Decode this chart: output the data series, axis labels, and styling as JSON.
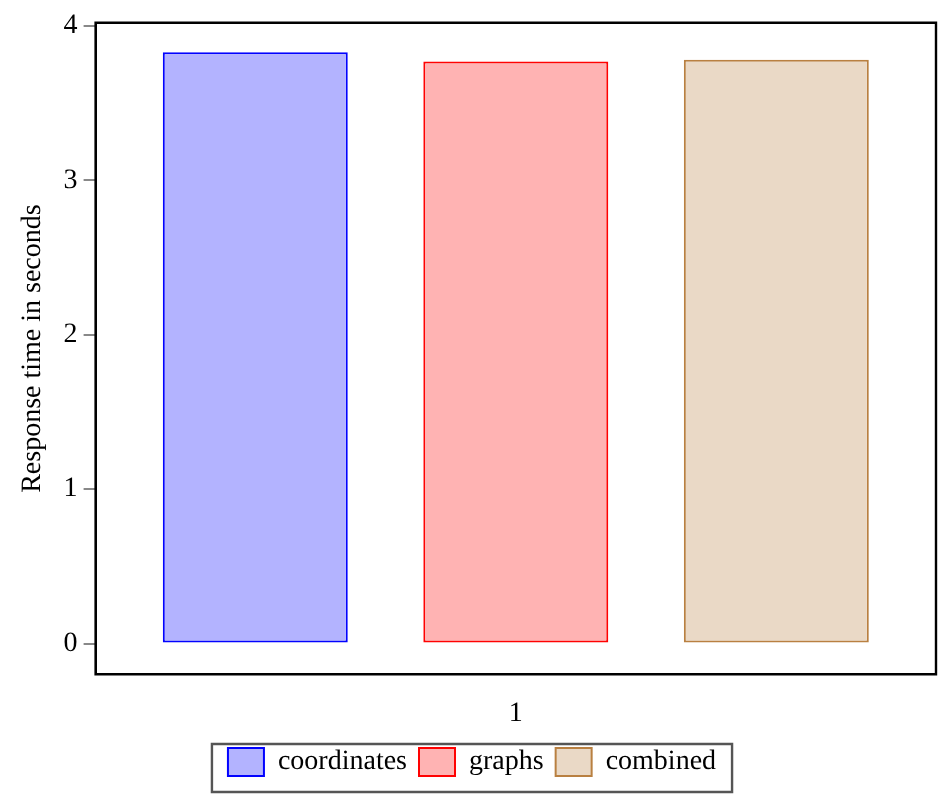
{
  "chart_data": {
    "type": "bar",
    "ylabel": "Response time in seconds",
    "categories": [
      "1"
    ],
    "series": [
      {
        "name": "coordinates",
        "color": "#b3b3ff",
        "values": [
          3.83
        ]
      },
      {
        "name": "graphs",
        "color": "#ffb3b3",
        "values": [
          3.77
        ]
      },
      {
        "name": "combined",
        "color": "#ead9c6",
        "values": [
          3.78
        ]
      }
    ],
    "ylim": [
      -0.2,
      4.02
    ],
    "yticks": [
      0,
      1,
      2,
      3,
      4
    ],
    "grid": false,
    "legend": "bottom"
  }
}
